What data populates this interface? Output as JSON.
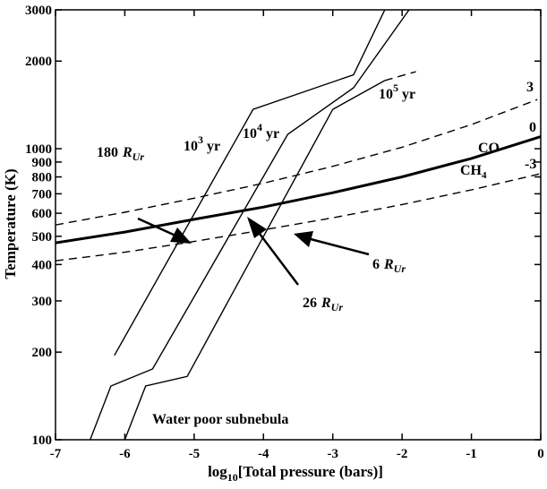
{
  "chart_data": {
    "type": "line",
    "title": "",
    "xlabel": "log10[Total pressure (bars)]",
    "xlabel_main": "log",
    "xlabel_sub": "10",
    "xlabel_rest": "[Total pressure (bars)]",
    "ylabel": "Temperature (K)",
    "xlim": [
      -7,
      0
    ],
    "ylim": [
      100,
      3000
    ],
    "yscale": "log",
    "x_ticks": [
      -7,
      -6,
      -5,
      -4,
      -3,
      -2,
      -1,
      0
    ],
    "x_tick_labels": [
      "-7",
      "-6",
      "-5",
      "-4",
      "-3",
      "-2",
      "-1",
      "0"
    ],
    "y_ticks": [
      100,
      200,
      300,
      400,
      500,
      600,
      700,
      800,
      900,
      1000,
      2000,
      3000
    ],
    "y_tick_labels": [
      "100",
      "200",
      "300",
      "400",
      "500",
      "600",
      "700",
      "800",
      "900",
      "1000",
      "2000",
      "3000"
    ],
    "series": [
      {
        "style": "solid-thick",
        "points": [
          [
            -7,
            475
          ],
          [
            -6,
            517
          ],
          [
            -5,
            572
          ],
          [
            -4,
            630
          ],
          [
            -3,
            706
          ],
          [
            -2,
            800
          ],
          [
            -1,
            926
          ],
          [
            0,
            1100
          ]
        ]
      },
      {
        "style": "dashed",
        "points": [
          [
            -7,
            547
          ],
          [
            -6,
            605
          ],
          [
            -5,
            676
          ],
          [
            -4,
            761
          ],
          [
            -3,
            870
          ],
          [
            -2,
            1012
          ],
          [
            -1,
            1210
          ],
          [
            -0.05,
            1475
          ]
        ]
      },
      {
        "style": "dashed",
        "points": [
          [
            -7,
            412
          ],
          [
            -6,
            441
          ],
          [
            -5,
            480
          ],
          [
            -4,
            526
          ],
          [
            -3,
            579
          ],
          [
            -2,
            643
          ],
          [
            -1,
            722
          ],
          [
            0,
            821
          ]
        ]
      },
      {
        "style": "solid",
        "points": [
          [
            -6.15,
            195
          ],
          [
            -4.15,
            1365
          ],
          [
            -2.7,
            1795
          ],
          [
            -2.25,
            3000
          ]
        ]
      },
      {
        "style": "solid",
        "points": [
          [
            -6.5,
            100
          ],
          [
            -6.2,
            153
          ],
          [
            -5.6,
            175
          ],
          [
            -3.65,
            1120
          ],
          [
            -2.7,
            1620
          ],
          [
            -1.9,
            3000
          ]
        ]
      },
      {
        "style": "solid",
        "points": [
          [
            -6.0,
            100
          ],
          [
            -5.7,
            153
          ],
          [
            -5.1,
            165
          ],
          [
            -3.0,
            1365
          ],
          [
            -2.25,
            1715
          ]
        ]
      },
      {
        "style": "dashed",
        "points": [
          [
            -2.25,
            1715
          ],
          [
            -1.8,
            1840
          ]
        ]
      }
    ],
    "annotations": {
      "label_3": "3",
      "label_0": "0",
      "label_neg3": "-3",
      "co": "CO",
      "ch4_main": "CH",
      "ch4_sub": "4",
      "yr3_base": "10",
      "yr3_exp": "3",
      "yr4_base": "10",
      "yr4_exp": "4",
      "yr5_base": "10",
      "yr5_exp": "5",
      "yr_unit": "yr",
      "r180_num": "180",
      "r26_num": "26",
      "r6_num": "6",
      "r_main": "R",
      "r_sub": "Ur",
      "water_poor": "Water poor subnebula"
    }
  }
}
